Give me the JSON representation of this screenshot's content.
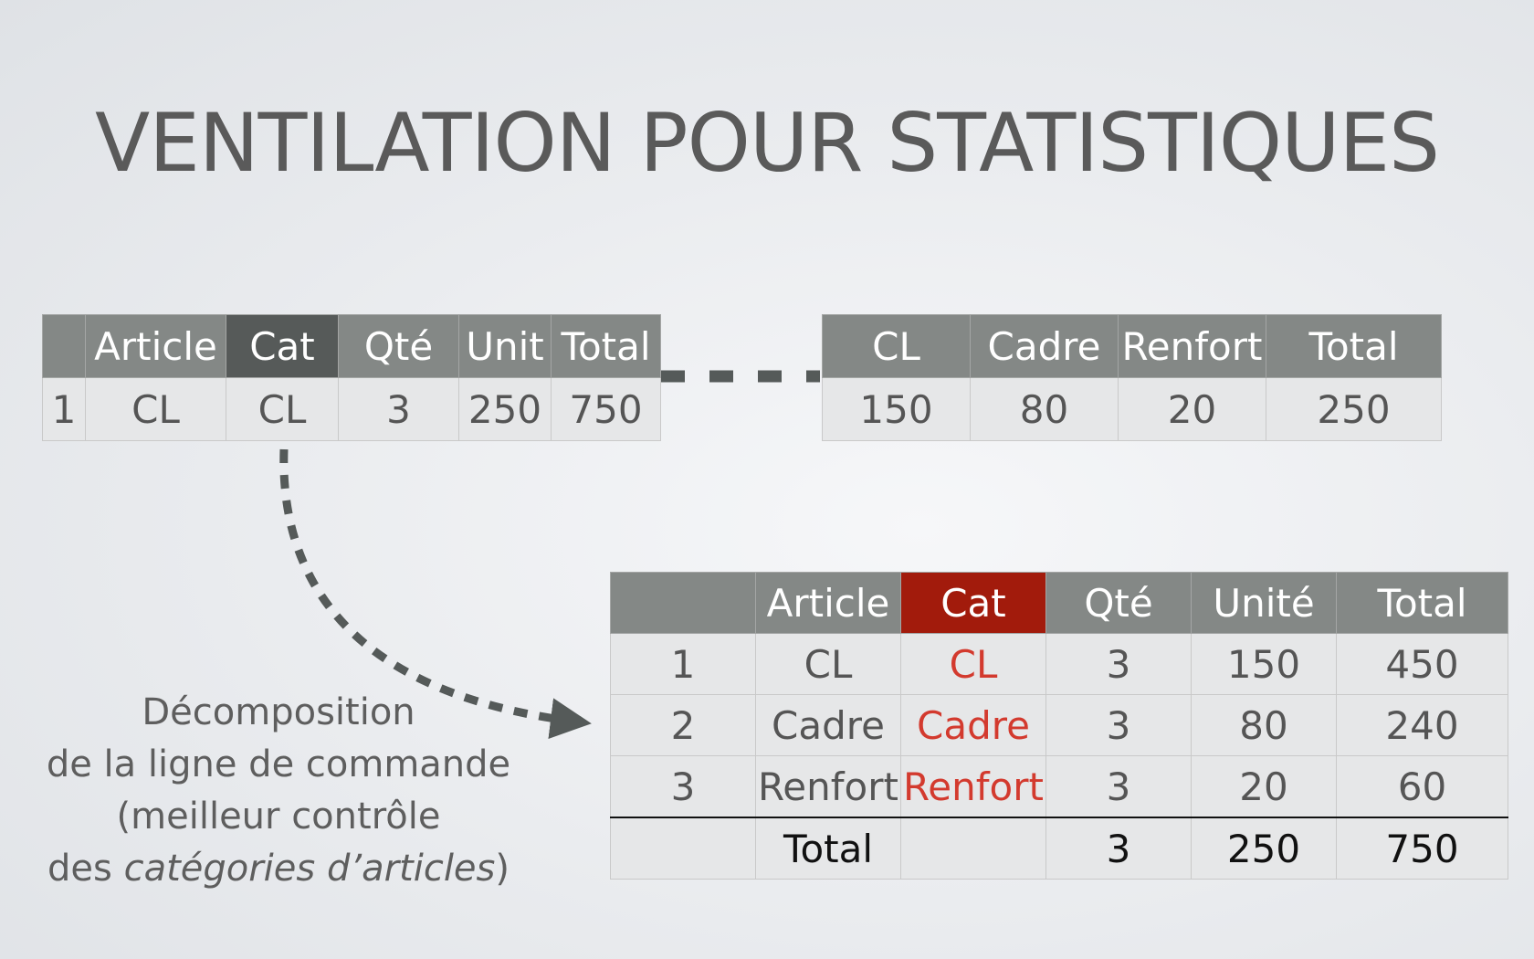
{
  "title": "VENTILATION POUR STATISTIQUES",
  "order_table": {
    "headers": [
      "",
      "Article",
      "Cat",
      "Qté",
      "Unit",
      "Total"
    ],
    "row": [
      "1",
      "CL",
      "CL",
      "3",
      "250",
      "750"
    ]
  },
  "breakdown_table": {
    "headers": [
      "CL",
      "Cadre",
      "Renfort",
      "Total"
    ],
    "row": [
      "150",
      "80",
      "20",
      "250"
    ]
  },
  "detail_table": {
    "headers": [
      "",
      "Article",
      "Cat",
      "Qté",
      "Unité",
      "Total"
    ],
    "rows": [
      [
        "1",
        "CL",
        "CL",
        "3",
        "150",
        "450"
      ],
      [
        "2",
        "Cadre",
        "Cadre",
        "3",
        "80",
        "240"
      ],
      [
        "3",
        "Renfort",
        "Renfort",
        "3",
        "20",
        "60"
      ]
    ],
    "total_row": [
      "",
      "Total",
      "",
      "3",
      "250",
      "750"
    ]
  },
  "note": {
    "line1": "Décomposition",
    "line2": "de la ligne de commande",
    "line3": "(meilleur contrôle",
    "line4_prefix": "des ",
    "line4_italic": "catégories d’articles",
    "line4_suffix": ")"
  },
  "colors": {
    "header_gray": "#848886",
    "header_dark": "#565a59",
    "header_red": "#a21b0c",
    "text_red": "#d33a2e",
    "arrow": "#555a59"
  }
}
